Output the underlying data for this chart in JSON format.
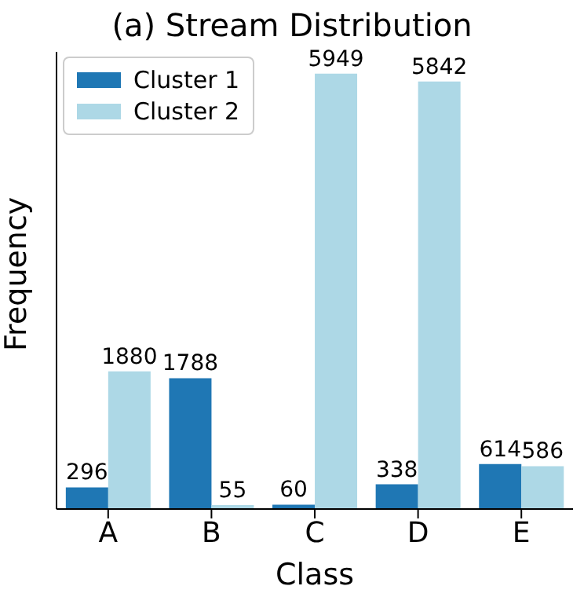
{
  "chart_data": {
    "type": "bar",
    "title": "(a) Stream Distribution",
    "xlabel": "Class",
    "ylabel": "Frequency",
    "categories": [
      "A",
      "B",
      "C",
      "D",
      "E"
    ],
    "series": [
      {
        "name": "Cluster 1",
        "color": "#1f77b4",
        "values": [
          296,
          1788,
          60,
          338,
          614
        ]
      },
      {
        "name": "Cluster 2",
        "color": "#add8e6",
        "values": [
          1880,
          55,
          5949,
          5842,
          586
        ]
      }
    ],
    "data_labels": true,
    "legend": "top left",
    "grid": false,
    "tick_labels": "x"
  }
}
